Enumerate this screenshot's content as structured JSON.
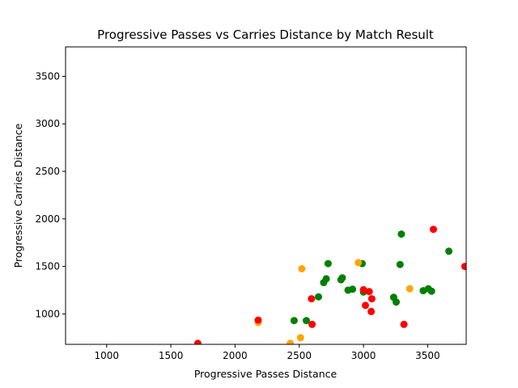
{
  "chart_data": {
    "type": "scatter",
    "title": "Progressive Passes vs Carries Distance by Match Result",
    "xlabel": "Progressive Passes Distance",
    "ylabel": "Progressive Carries Distance",
    "xlim": [
      680,
      3800
    ],
    "ylim": [
      680,
      3810
    ],
    "xticks": [
      1000,
      1500,
      2000,
      2500,
      3000,
      3500
    ],
    "yticks": [
      1000,
      1500,
      2000,
      2500,
      3000,
      3500
    ],
    "grid": false,
    "legend": "none",
    "colors": {
      "win": "#008000",
      "draw": "#ffa500",
      "loss": "#ff0000"
    },
    "series": [
      {
        "color": "#008000",
        "points": [
          [
            2460,
            930
          ],
          [
            2555,
            930
          ],
          [
            2650,
            1180
          ],
          [
            2690,
            1330
          ],
          [
            2710,
            1370
          ],
          [
            2725,
            1530
          ],
          [
            2825,
            1360
          ],
          [
            2835,
            1380
          ],
          [
            2880,
            1250
          ],
          [
            2915,
            1260
          ],
          [
            2990,
            1530
          ],
          [
            3000,
            1230
          ],
          [
            3235,
            1175
          ],
          [
            3255,
            1125
          ],
          [
            3285,
            1520
          ],
          [
            3295,
            1840
          ],
          [
            3465,
            1245
          ],
          [
            3505,
            1265
          ],
          [
            3530,
            1240
          ],
          [
            3665,
            1660
          ]
        ]
      },
      {
        "color": "#ffa500",
        "points": [
          [
            2180,
            910
          ],
          [
            2430,
            690
          ],
          [
            2510,
            750
          ],
          [
            2520,
            1475
          ],
          [
            2960,
            1540
          ],
          [
            3360,
            1265
          ]
        ]
      },
      {
        "color": "#ff0000",
        "points": [
          [
            1710,
            690
          ],
          [
            2180,
            935
          ],
          [
            2595,
            1160
          ],
          [
            2600,
            890
          ],
          [
            3000,
            1255
          ],
          [
            3015,
            1090
          ],
          [
            3045,
            1235
          ],
          [
            3060,
            1025
          ],
          [
            3065,
            1160
          ],
          [
            3315,
            890
          ],
          [
            3545,
            1890
          ],
          [
            3790,
            1500
          ]
        ]
      }
    ]
  }
}
